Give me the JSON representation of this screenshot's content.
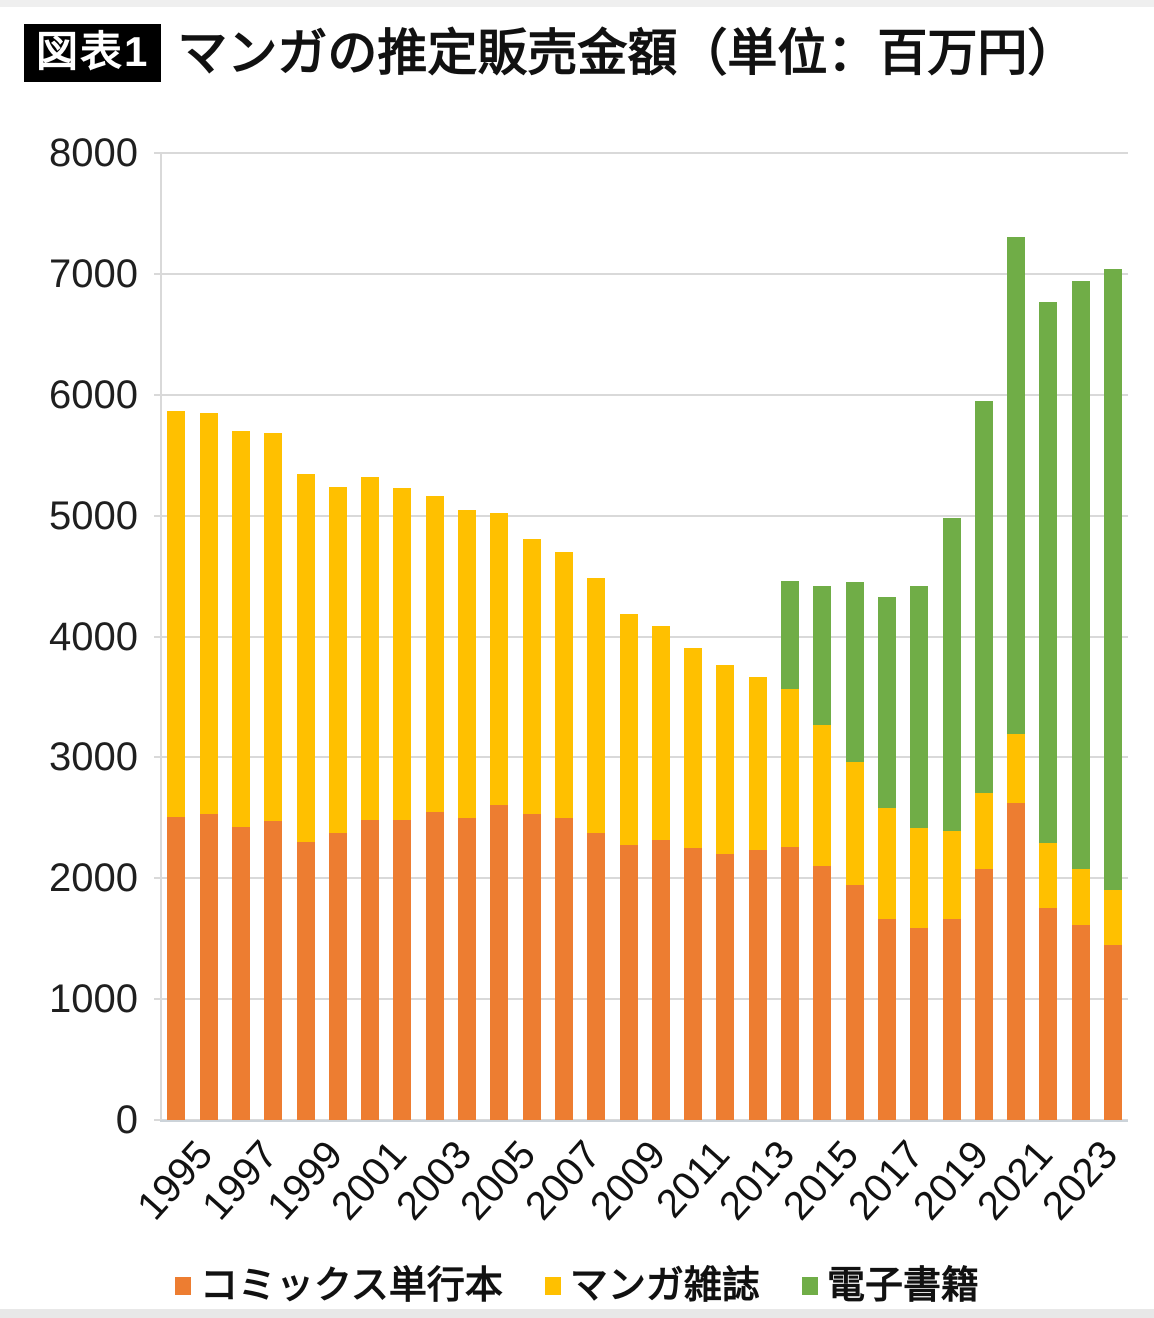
{
  "header": {
    "badge": "図表1",
    "title": "マンガの推定販売金額（単位：百万円）"
  },
  "chart_data": {
    "type": "bar",
    "stacked": true,
    "title": "マンガの推定販売金額（単位：百万円）",
    "unit_label": "百万円",
    "categories": [
      1995,
      1996,
      1997,
      1998,
      1999,
      2000,
      2001,
      2002,
      2003,
      2004,
      2005,
      2006,
      2007,
      2008,
      2009,
      2010,
      2011,
      2012,
      2013,
      2014,
      2015,
      2016,
      2017,
      2018,
      2019,
      2020,
      2021,
      2022,
      2023,
      2024
    ],
    "x_tick_labels": [
      "1995",
      "1997",
      "1999",
      "2001",
      "2003",
      "2005",
      "2007",
      "2009",
      "2011",
      "2013",
      "2015",
      "2017",
      "2019",
      "2021",
      "2023"
    ],
    "series": [
      {
        "key": "comics",
        "name": "コミックス単行本",
        "color": "#ED7D31",
        "values": [
          2507,
          2535,
          2421,
          2473,
          2302,
          2372,
          2480,
          2482,
          2549,
          2498,
          2602,
          2533,
          2495,
          2372,
          2274,
          2315,
          2253,
          2202,
          2231,
          2256,
          2102,
          1947,
          1666,
          1588,
          1665,
          2079,
          2620,
          1754,
          1610,
          1445
        ]
      },
      {
        "key": "magazines",
        "name": "マンガ雑誌",
        "color": "#FFC000",
        "values": [
          3357,
          3312,
          3279,
          3207,
          3041,
          2861,
          2837,
          2748,
          2611,
          2549,
          2421,
          2277,
          2204,
          2111,
          1913,
          1776,
          1650,
          1564,
          1438,
          1313,
          1166,
          1016,
          917,
          824,
          722,
          627,
          570,
          537,
          470,
          460
        ]
      },
      {
        "key": "digital",
        "name": "電子書籍",
        "color": "#70AD47",
        "values": [
          0,
          0,
          0,
          0,
          0,
          0,
          0,
          0,
          0,
          0,
          0,
          0,
          0,
          0,
          0,
          0,
          0,
          0,
          0,
          887,
          1149,
          1491,
          1747,
          2002,
          2593,
          3240,
          4114,
          4479,
          4857,
          5135
        ]
      }
    ],
    "ylim": [
      0,
      8000
    ],
    "y_ticks": [
      0,
      1000,
      2000,
      3000,
      4000,
      5000,
      6000,
      7000,
      8000
    ],
    "grid": true,
    "gridline_color": "#d9d9d9",
    "axis_line_color": "#ccd3d9",
    "legend_position": "bottom"
  }
}
